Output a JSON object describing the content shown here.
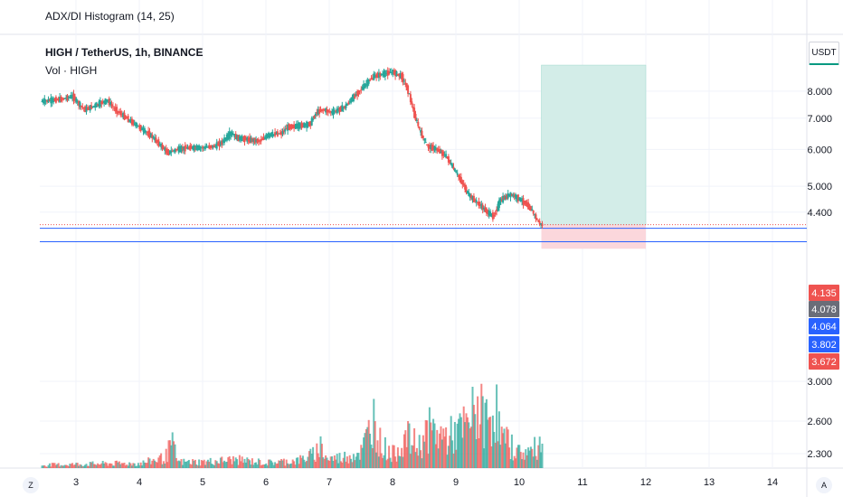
{
  "top_panel": {
    "title": "ADX/DI Histogram (14, 25)"
  },
  "header": {
    "symbol_line": "HIGH / TetherUS, 1h, BINANCE",
    "volume_line": "Vol · HIGH"
  },
  "currency_button": "USDT",
  "corner_left": "Z",
  "corner_right": "A",
  "colors": {
    "up": "#26a69a",
    "down": "#ef5350",
    "profit": "#d3ede8",
    "loss": "#fbd7dc",
    "level": "#2962ff"
  },
  "chart_data": {
    "type": "candlestick",
    "y_scale": "log",
    "y_range": [
      2.2,
      10.5
    ],
    "x_range": [
      2.45,
      14.6
    ],
    "x_ticks": [
      "3",
      "4",
      "5",
      "6",
      "7",
      "8",
      "9",
      "10",
      "11",
      "12",
      "13",
      "14"
    ],
    "y_ticks": [
      "8.000",
      "7.000",
      "6.000",
      "5.000",
      "4.400",
      "3.000",
      "2.600",
      "2.300"
    ],
    "price_labels": [
      {
        "value": "4.135",
        "color": "#ef5350"
      },
      {
        "value": "4.078",
        "color": "#6a6d78"
      },
      {
        "value": "4.064",
        "color": "#2962ff"
      },
      {
        "value": "3.802",
        "color": "#2962ff"
      },
      {
        "value": "3.672",
        "color": "#ef5350"
      }
    ],
    "horizontal_levels": [
      4.064,
      3.802
    ],
    "last_price_line": 4.135,
    "position_box": {
      "start_day": 10.35,
      "end_day": 12.0,
      "entry": 4.135,
      "target": 9.1,
      "stop": 3.672
    },
    "price_path": [
      [
        2.45,
        7.6
      ],
      [
        2.8,
        7.7
      ],
      [
        2.95,
        7.8
      ],
      [
        3.05,
        7.5
      ],
      [
        3.15,
        7.3
      ],
      [
        3.35,
        7.5
      ],
      [
        3.5,
        7.65
      ],
      [
        3.6,
        7.35
      ],
      [
        3.8,
        7.0
      ],
      [
        4.0,
        6.7
      ],
      [
        4.2,
        6.4
      ],
      [
        4.35,
        6.1
      ],
      [
        4.45,
        5.9
      ],
      [
        4.6,
        6.0
      ],
      [
        4.8,
        6.05
      ],
      [
        5.0,
        6.05
      ],
      [
        5.2,
        6.1
      ],
      [
        5.3,
        6.2
      ],
      [
        5.45,
        6.5
      ],
      [
        5.55,
        6.35
      ],
      [
        5.7,
        6.3
      ],
      [
        5.9,
        6.25
      ],
      [
        6.05,
        6.45
      ],
      [
        6.25,
        6.5
      ],
      [
        6.35,
        6.7
      ],
      [
        6.55,
        6.75
      ],
      [
        6.7,
        6.8
      ],
      [
        6.8,
        7.2
      ],
      [
        6.9,
        7.3
      ],
      [
        7.05,
        7.2
      ],
      [
        7.25,
        7.4
      ],
      [
        7.4,
        7.8
      ],
      [
        7.55,
        8.2
      ],
      [
        7.7,
        8.6
      ],
      [
        7.85,
        8.7
      ],
      [
        8.0,
        8.8
      ],
      [
        8.15,
        8.6
      ],
      [
        8.25,
        8.0
      ],
      [
        8.35,
        7.1
      ],
      [
        8.45,
        6.5
      ],
      [
        8.55,
        6.1
      ],
      [
        8.7,
        6.0
      ],
      [
        8.85,
        5.8
      ],
      [
        8.95,
        5.5
      ],
      [
        9.1,
        5.1
      ],
      [
        9.2,
        4.8
      ],
      [
        9.35,
        4.6
      ],
      [
        9.5,
        4.4
      ],
      [
        9.6,
        4.3
      ],
      [
        9.7,
        4.65
      ],
      [
        9.85,
        4.8
      ],
      [
        9.95,
        4.75
      ],
      [
        10.1,
        4.6
      ],
      [
        10.2,
        4.45
      ],
      [
        10.3,
        4.2
      ],
      [
        10.35,
        4.135
      ]
    ],
    "volume_range": [
      0,
      100
    ],
    "volume_peaks": [
      [
        2.45,
        4
      ],
      [
        3.0,
        5
      ],
      [
        3.5,
        6
      ],
      [
        4.0,
        6
      ],
      [
        4.4,
        14
      ],
      [
        4.5,
        32
      ],
      [
        4.6,
        8
      ],
      [
        5.0,
        8
      ],
      [
        5.5,
        11
      ],
      [
        6.0,
        7
      ],
      [
        6.5,
        10
      ],
      [
        6.75,
        18
      ],
      [
        6.85,
        30
      ],
      [
        6.95,
        12
      ],
      [
        7.2,
        14
      ],
      [
        7.5,
        22
      ],
      [
        7.7,
        68
      ],
      [
        7.8,
        30
      ],
      [
        8.0,
        18
      ],
      [
        8.2,
        40
      ],
      [
        8.4,
        28
      ],
      [
        8.55,
        50
      ],
      [
        8.7,
        44
      ],
      [
        8.85,
        40
      ],
      [
        9.0,
        46
      ],
      [
        9.2,
        56
      ],
      [
        9.3,
        80
      ],
      [
        9.45,
        62
      ],
      [
        9.55,
        68
      ],
      [
        9.6,
        86
      ],
      [
        9.7,
        40
      ],
      [
        9.85,
        30
      ],
      [
        10.0,
        20
      ],
      [
        10.2,
        22
      ],
      [
        10.3,
        32
      ]
    ]
  }
}
